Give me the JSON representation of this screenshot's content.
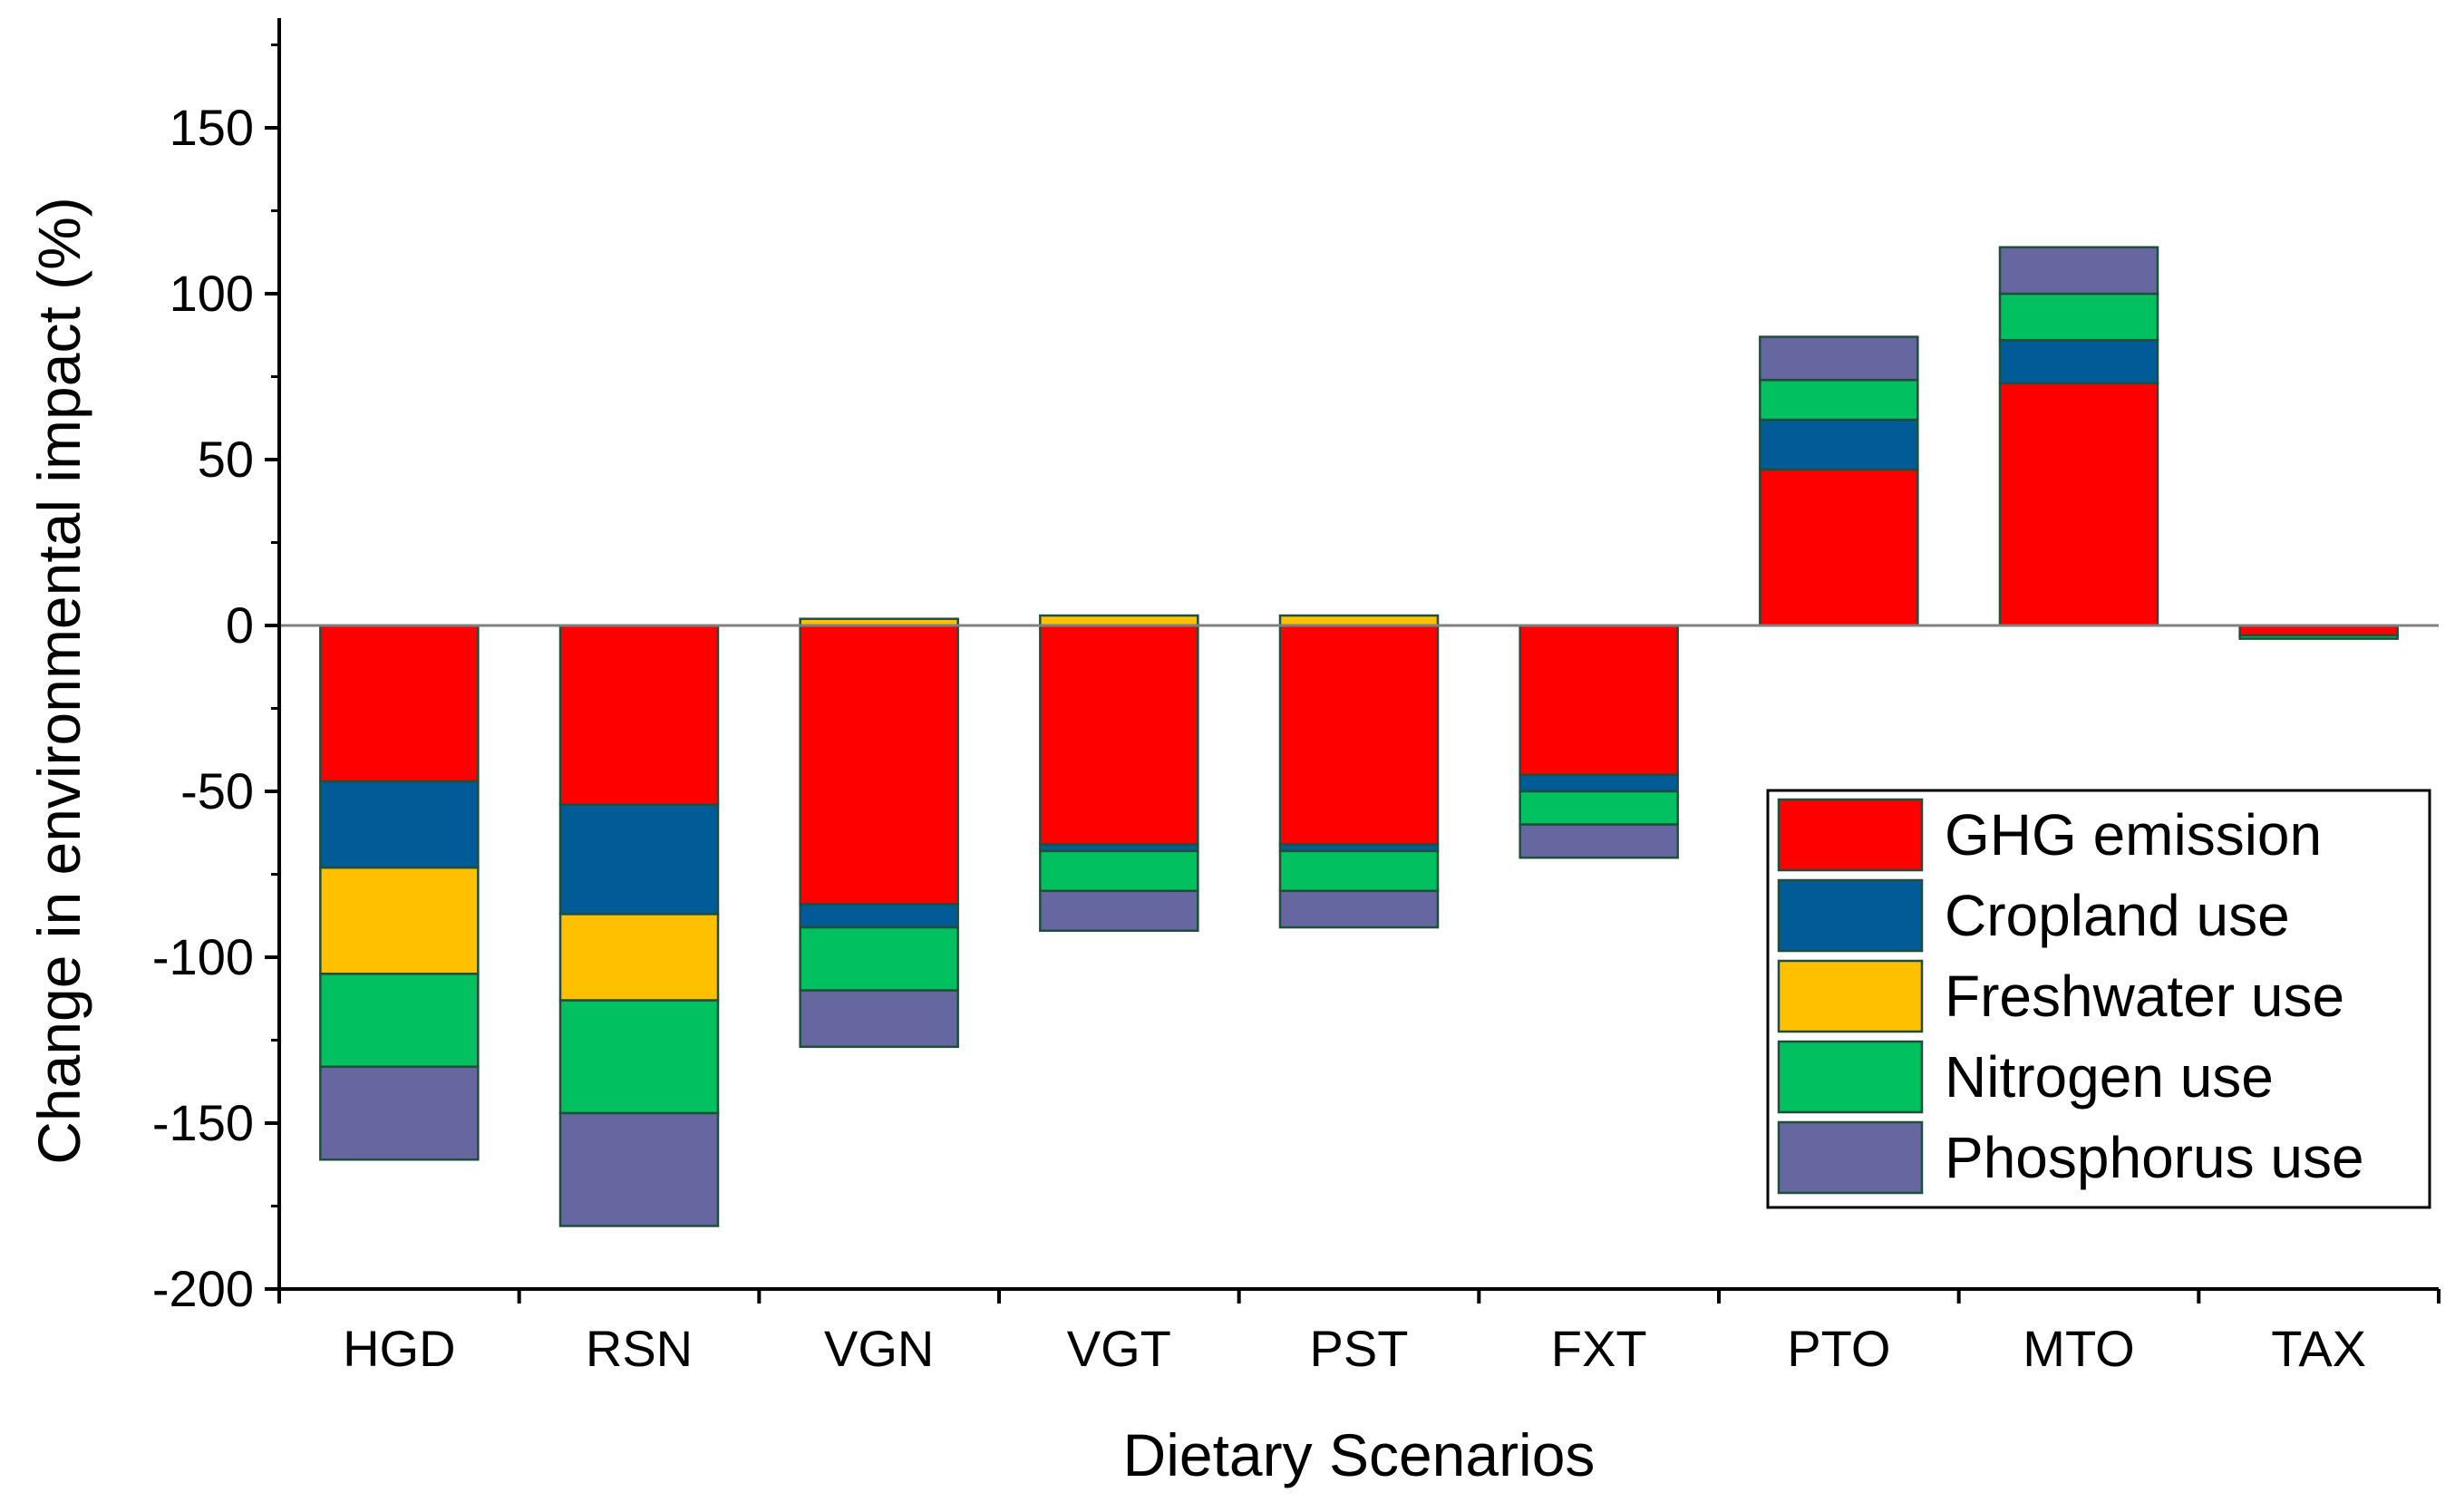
{
  "chart_data": {
    "type": "bar",
    "stacked": true,
    "title": "",
    "xlabel": "Dietary Scenarios",
    "ylabel": "Change in environmental impact (%)",
    "ylim": [
      -200,
      180
    ],
    "yticks": [
      -200,
      -150,
      -100,
      -50,
      0,
      50,
      100,
      150
    ],
    "ytick_labels": [
      "-200",
      "-150",
      "-100",
      "-50",
      "0",
      "50",
      "100",
      "150"
    ],
    "categories": [
      "HGD",
      "RSN",
      "VGN",
      "VGT",
      "PST",
      "FXT",
      "PTO",
      "MTO",
      "TAX"
    ],
    "series": [
      {
        "name": "GHG emission",
        "color": "#FF0000",
        "values": [
          -47,
          -54,
          -84,
          -66,
          -66,
          -45,
          47,
          73,
          -3
        ]
      },
      {
        "name": "Cropland use",
        "color": "#005B96",
        "values": [
          -26,
          -33,
          -7,
          -2,
          -2,
          -5,
          15,
          13,
          0
        ]
      },
      {
        "name": "Freshwater use",
        "color": "#FFC000",
        "values": [
          -32,
          -26,
          2,
          3,
          3,
          0,
          0,
          0,
          0
        ]
      },
      {
        "name": "Nitrogen use",
        "color": "#00C060",
        "values": [
          -28,
          -34,
          -19,
          -12,
          -12,
          -10,
          12,
          14,
          -1
        ]
      },
      {
        "name": "Phosphorus use",
        "color": "#6666A0",
        "values": [
          -28,
          -34,
          -17,
          -12,
          -11,
          -10,
          13,
          14,
          0
        ]
      }
    ],
    "legend_position": "bottom-right",
    "grid": false
  }
}
